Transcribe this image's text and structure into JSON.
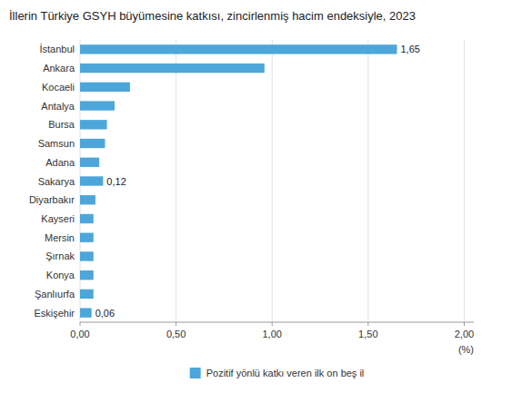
{
  "chart_data": {
    "type": "bar",
    "orientation": "horizontal",
    "title": "İllerin Türkiye GSYH büyümesine katkısı, zincirlenmiş hacim endeksiyle, 2023",
    "xlabel": "(%)",
    "categories": [
      "Eskişehir",
      "Şanlıurfa",
      "Konya",
      "Şırnak",
      "Mersin",
      "Kayseri",
      "Diyarbakır",
      "Sakarya",
      "Adana",
      "Samsun",
      "Bursa",
      "Antalya",
      "Kocaeli",
      "Ankara",
      "İstanbul"
    ],
    "series": [
      {
        "name": "Pozitif yönlü katkı veren ilk on beş il",
        "color": "#4da6d9",
        "values": [
          0.06,
          0.07,
          0.07,
          0.07,
          0.07,
          0.07,
          0.08,
          0.12,
          0.1,
          0.13,
          0.14,
          0.18,
          0.26,
          0.96,
          1.65
        ],
        "value_labels": [
          "0,06",
          null,
          null,
          null,
          null,
          null,
          null,
          "0,12",
          null,
          null,
          null,
          null,
          null,
          null,
          "1,65"
        ]
      }
    ],
    "data_labels": true,
    "xlim": [
      0,
      2.05
    ],
    "xticks": [
      {
        "value": 0.0,
        "label": "0,00"
      },
      {
        "value": 0.5,
        "label": "0,50"
      },
      {
        "value": 1.0,
        "label": "1,00"
      },
      {
        "value": 1.5,
        "label": "1,50"
      },
      {
        "value": 2.0,
        "label": "2,00"
      }
    ],
    "grid": true,
    "legend": "bottom"
  }
}
